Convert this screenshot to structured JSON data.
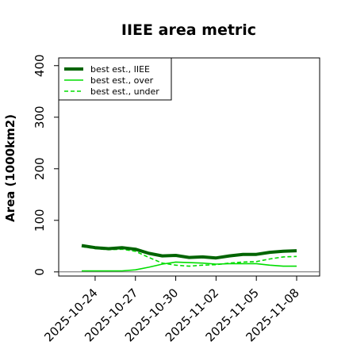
{
  "chart_data": {
    "type": "line",
    "title": "IIEE area metric",
    "xlabel": "",
    "ylabel": "Area (1000km2)",
    "ylim": [
      -8,
      415
    ],
    "yticks": [
      0,
      100,
      200,
      300,
      400
    ],
    "x_ticks": [
      "2025-10-24",
      "2025-10-27",
      "2025-10-30",
      "2025-11-02",
      "2025-11-05",
      "2025-11-08"
    ],
    "x": [
      "2025-10-23",
      "2025-10-24",
      "2025-10-25",
      "2025-10-26",
      "2025-10-27",
      "2025-10-28",
      "2025-10-29",
      "2025-10-30",
      "2025-10-31",
      "2025-11-01",
      "2025-11-02",
      "2025-11-03",
      "2025-11-04",
      "2025-11-05",
      "2025-11-06",
      "2025-11-07",
      "2025-11-08"
    ],
    "legend_position": "top-left",
    "grid": false,
    "series": [
      {
        "name": "best est., IIEE",
        "color": "#006400",
        "style": "solid-thick",
        "values": [
          51,
          47,
          45,
          47,
          44,
          36,
          31,
          32,
          28,
          29,
          27,
          31,
          34,
          34,
          38,
          40,
          41
        ]
      },
      {
        "name": "best est., over",
        "color": "#00dd00",
        "style": "solid",
        "values": [
          2,
          2,
          2,
          2,
          4,
          9,
          15,
          19,
          18,
          17,
          15,
          16,
          16,
          16,
          13,
          11,
          11
        ]
      },
      {
        "name": "best est., under",
        "color": "#00dd00",
        "style": "dashed",
        "values": [
          49,
          45,
          43,
          44,
          40,
          28,
          17,
          13,
          11,
          13,
          14,
          17,
          19,
          20,
          25,
          29,
          30
        ]
      }
    ]
  }
}
